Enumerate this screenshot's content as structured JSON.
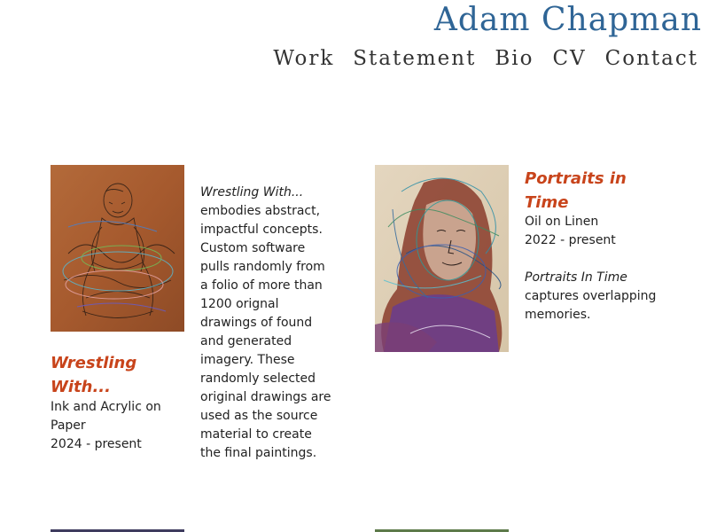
{
  "site": {
    "title": "Adam Chapman"
  },
  "nav": {
    "items": [
      "Work",
      "Statement",
      "Bio",
      "CV",
      "Contact"
    ]
  },
  "works": [
    {
      "title_line1": "Wrestling",
      "title_line2": "With...",
      "medium_line1": "Ink and Acrylic on",
      "medium_line2": "Paper",
      "dates": "2024 - present",
      "desc_title": "Wrestling With...",
      "desc_lines": [
        "embodies abstract,",
        "impactful concepts.",
        "Custom software",
        "pulls randomly from",
        "a folio of more than",
        "1200 orignal",
        "drawings of found",
        "and generated",
        "imagery. These",
        "randomly selected",
        "original drawings are",
        "used as the source",
        "material to create",
        "the final paintings."
      ]
    },
    {
      "title_line1": "Portraits in",
      "title_line2": "Time",
      "medium": "Oil on Linen",
      "dates": "2022 - present",
      "desc_title": "Portraits In Time",
      "desc_lines": [
        "captures overlapping",
        "memories."
      ]
    }
  ]
}
